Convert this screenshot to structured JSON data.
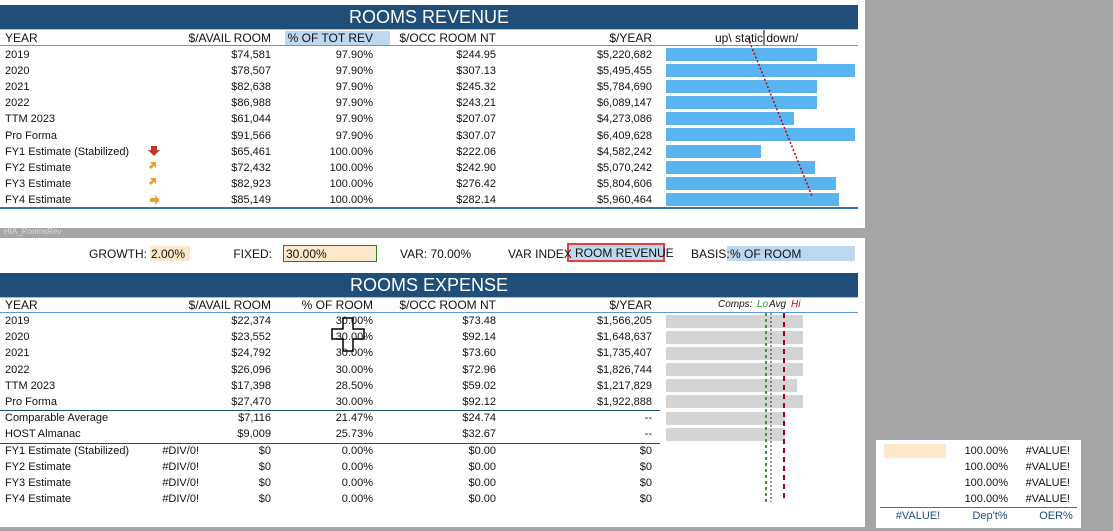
{
  "revenue": {
    "title": "ROOMS REVENUE",
    "columns": [
      "YEAR",
      "$/AVAIL ROOM",
      "% OF TOT REV",
      "$/OCC ROOM NT",
      "$/YEAR",
      "up\\ static down/"
    ],
    "rows": [
      [
        "2019",
        "$74,581",
        "97.90%",
        "$244.95",
        "$5,220,682"
      ],
      [
        "2020",
        "$78,507",
        "97.90%",
        "$307.13",
        "$5,495,455"
      ],
      [
        "2021",
        "$82,638",
        "97.90%",
        "$245.32",
        "$5,784,690"
      ],
      [
        "2022",
        "$86,988",
        "97.90%",
        "$243.21",
        "$6,089,147"
      ],
      [
        "TTM 2023",
        "$61,044",
        "97.90%",
        "$207.07",
        "$4,273,086"
      ],
      [
        "Pro Forma",
        "$91,566",
        "97.90%",
        "$307.07",
        "$6,409,628"
      ],
      [
        "FY1 Estimate (Stabilized)",
        "$65,461",
        "100.00%",
        "$222.06",
        "$4,582,242"
      ],
      [
        "FY2 Estimate",
        "$72,432",
        "100.00%",
        "$242.90",
        "$5,070,242"
      ],
      [
        "FY3 Estimate",
        "$82,923",
        "100.00%",
        "$276.42",
        "$5,804,606"
      ],
      [
        "FY4 Estimate",
        "$85,149",
        "100.00%",
        "$282.14",
        "$5,960,464"
      ]
    ]
  },
  "sheet_label": "HIA_RoomsRev",
  "controls": {
    "growth_label": "GROWTH:",
    "growth": "2.00%",
    "fixed_label": "FIXED:",
    "fixed": "30.00%",
    "var": "VAR: 70.00%",
    "var_index_label": "VAR INDEX",
    "var_index": "ROOM REVENUE",
    "basis_label": "BASIS:",
    "basis": "% OF ROOM"
  },
  "expense": {
    "title": "ROOMS EXPENSE",
    "columns": [
      "YEAR",
      "$/AVAIL ROOM",
      "% OF ROOM",
      "$/OCC ROOM NT",
      "$/YEAR"
    ],
    "comps": {
      "label": "Comps:",
      "lo": "Lo",
      "avg": "Avg",
      "hi": "Hi"
    },
    "rows": [
      [
        "2019",
        "$22,374",
        "30.00%",
        "$73.48",
        "$1,566,205"
      ],
      [
        "2020",
        "$23,552",
        "30.00%",
        "$92.14",
        "$1,648,637"
      ],
      [
        "2021",
        "$24,792",
        "30.00%",
        "$73.60",
        "$1,735,407"
      ],
      [
        "2022",
        "$26,096",
        "30.00%",
        "$72.96",
        "$1,826,744"
      ],
      [
        "TTM 2023",
        "$17,398",
        "28.50%",
        "$59.02",
        "$1,217,829"
      ],
      [
        "Pro Forma",
        "$27,470",
        "30.00%",
        "$92.12",
        "$1,922,888"
      ],
      [
        "Comparable Average",
        "$7,116",
        "21.47%",
        "$24.74",
        "--"
      ],
      [
        "HOST Almanac",
        "$9,009",
        "25.73%",
        "$32.67",
        "--"
      ],
      [
        "FY1 Estimate (Stabilized)",
        "#DIV/0!",
        "$0",
        "0.00%",
        "$0.00",
        "$0"
      ],
      [
        "FY2 Estimate",
        "#DIV/0!",
        "$0",
        "0.00%",
        "$0.00",
        "$0"
      ],
      [
        "FY3 Estimate",
        "#DIV/0!",
        "$0",
        "0.00%",
        "$0.00",
        "$0"
      ],
      [
        "FY4 Estimate",
        "#DIV/0!",
        "$0",
        "0.00%",
        "$0.00",
        "$0"
      ]
    ]
  },
  "side": {
    "rows": [
      [
        "100.00%",
        "#VALUE!"
      ],
      [
        "100.00%",
        "#VALUE!"
      ],
      [
        "100.00%",
        "#VALUE!"
      ],
      [
        "100.00%",
        "#VALUE!"
      ]
    ],
    "footer": [
      "#VALUE!",
      "Dep't%",
      "OER%"
    ]
  }
}
